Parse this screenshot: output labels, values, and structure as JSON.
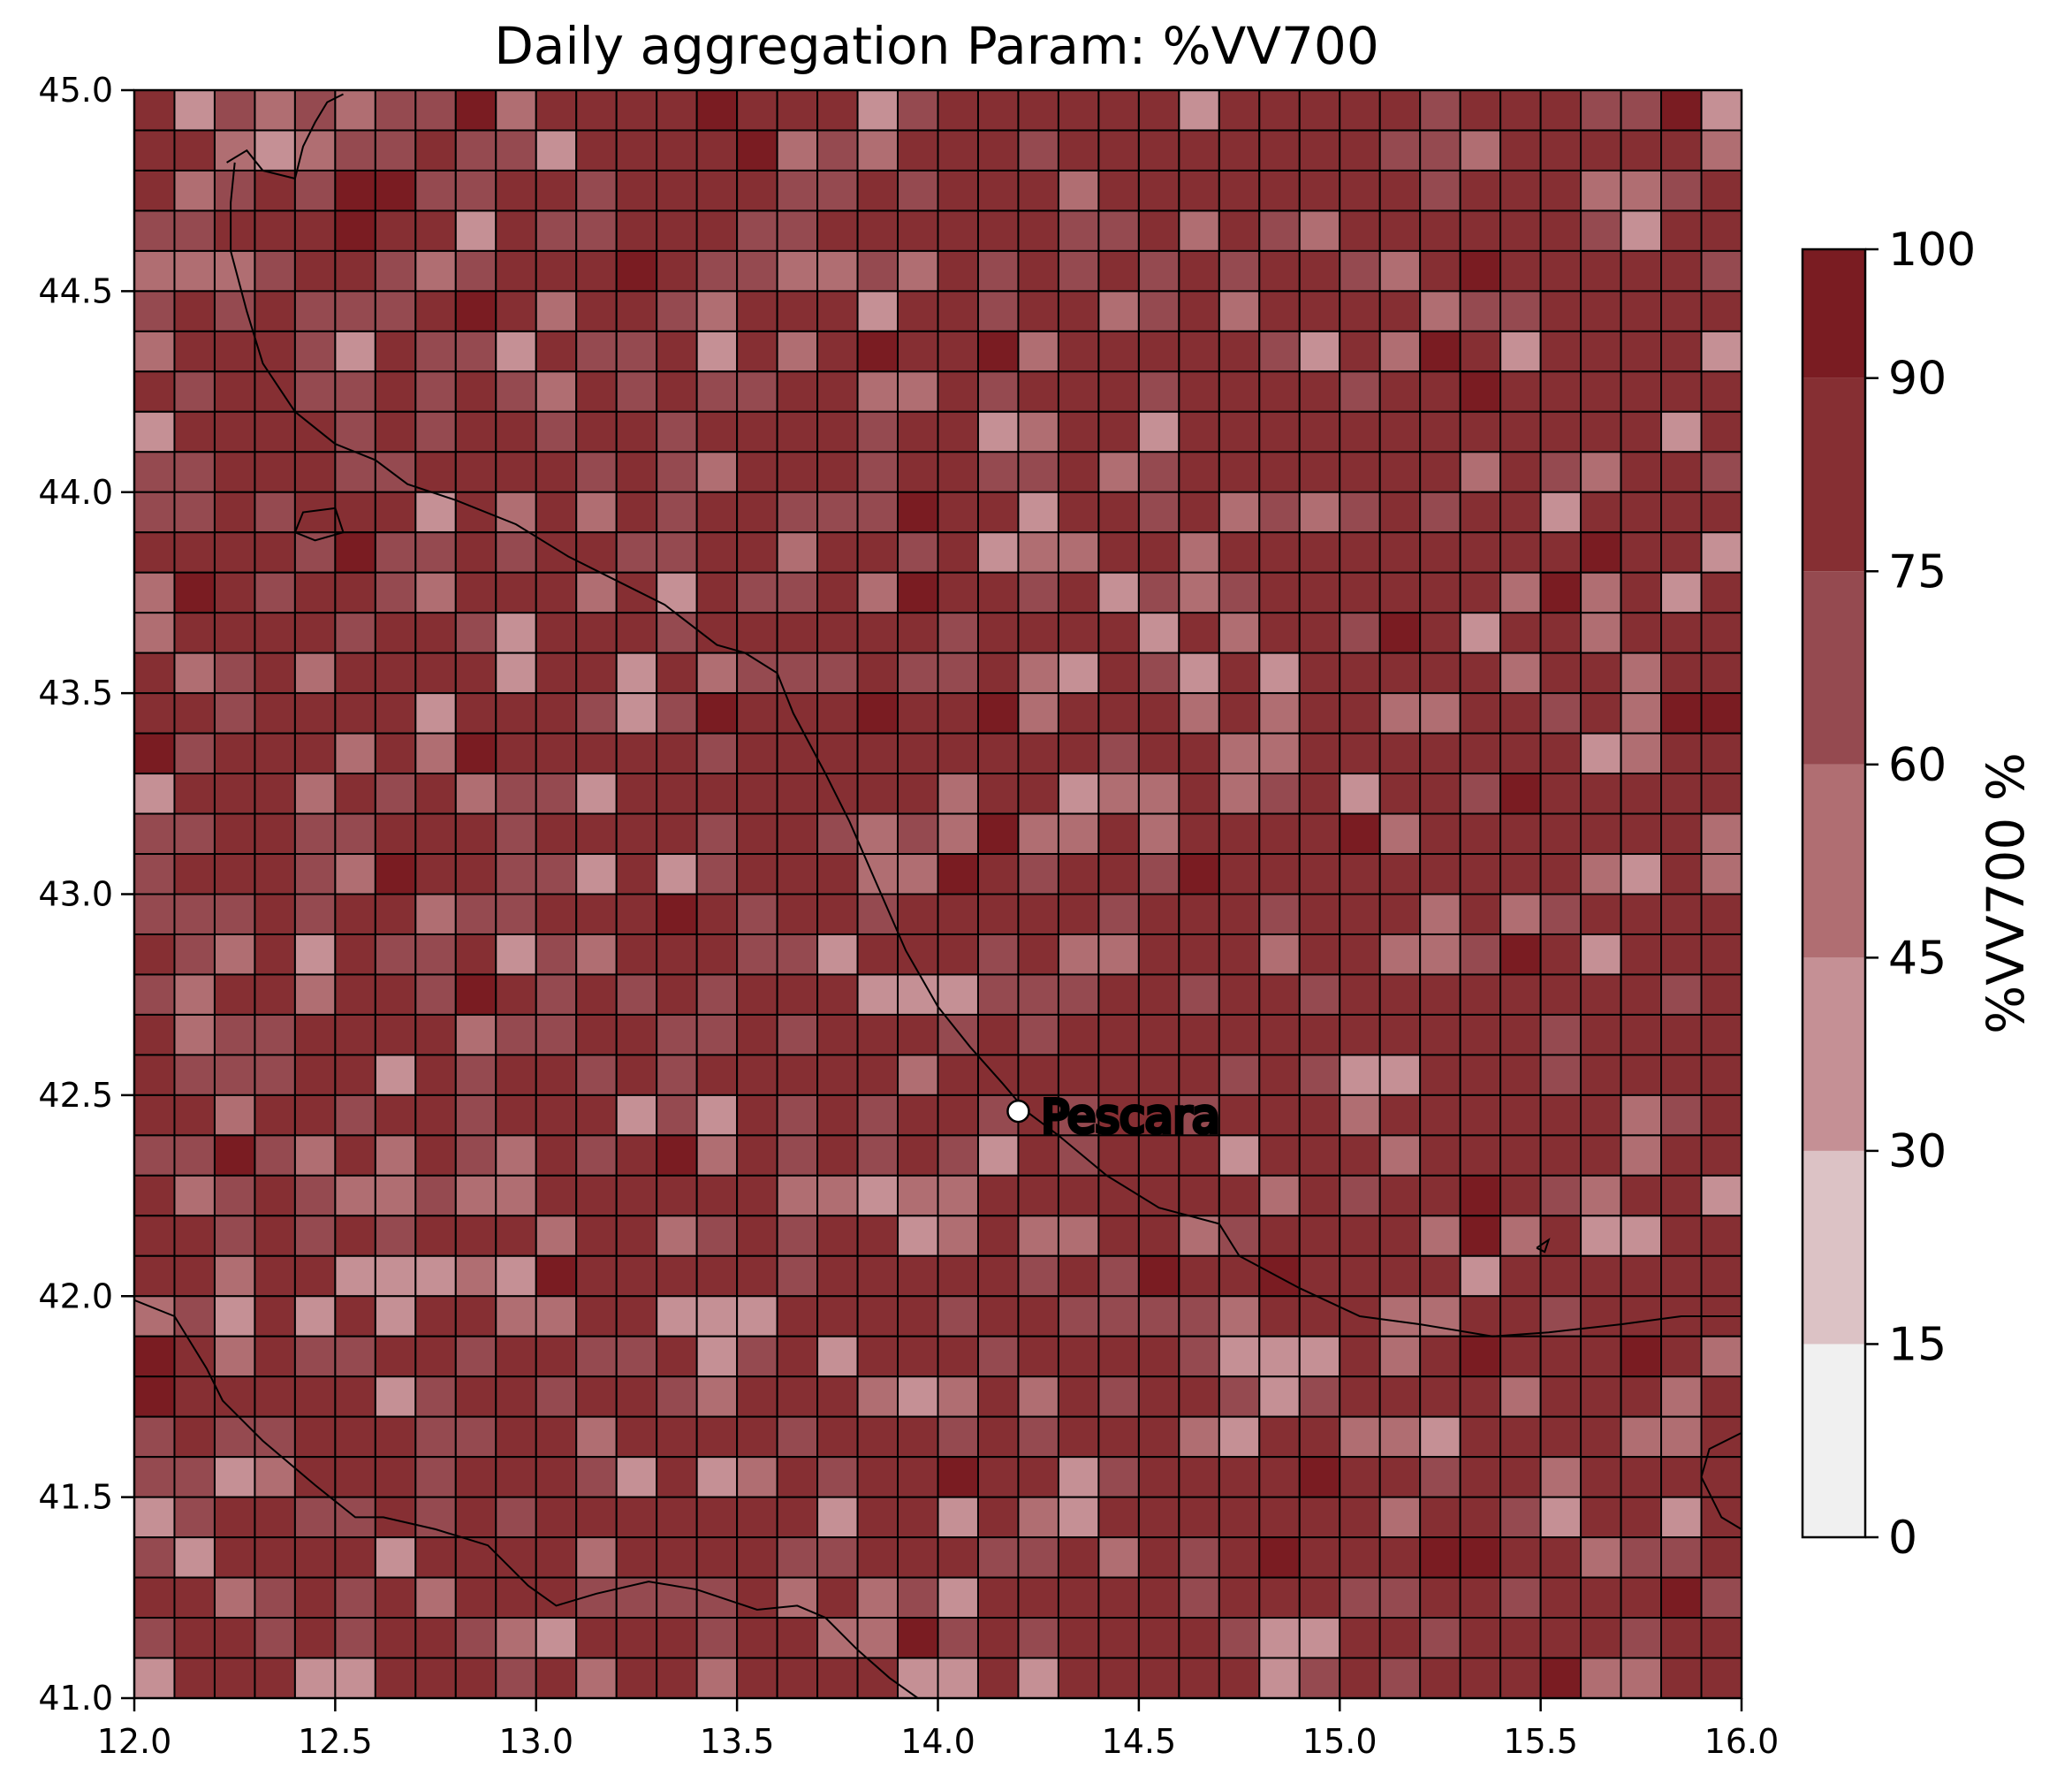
{
  "title": "Daily aggregation Param: %VV700",
  "place_label": "Pescara",
  "colorbar_label": "%VV700 %",
  "colors": {
    "grid_line": "#000000",
    "coast": "#000000",
    "marker_fill": "#ffffff"
  },
  "chart_data": {
    "type": "heatmap",
    "title": "Daily aggregation Param: %VV700",
    "xlim": [
      12.0,
      16.0
    ],
    "ylim": [
      41.0,
      45.0
    ],
    "x_ticks": [
      "12.0",
      "12.5",
      "13.0",
      "13.5",
      "14.0",
      "14.5",
      "15.0",
      "15.5",
      "16.0"
    ],
    "y_ticks": [
      "41.0",
      "41.5",
      "42.0",
      "42.5",
      "43.0",
      "43.5",
      "44.0",
      "44.5",
      "45.0"
    ],
    "grid": {
      "cols": 40,
      "rows": 40
    },
    "colorbar": {
      "label": "%VV700 %",
      "bounds": [
        0,
        15,
        30,
        45,
        60,
        75,
        90,
        100
      ],
      "tick_labels": [
        "0",
        "15",
        "30",
        "45",
        "60",
        "75",
        "90",
        "100"
      ],
      "colors": [
        "#f0f0f0",
        "#dcc2c5",
        "#c59095",
        "#b06e72",
        "#954a50",
        "#862f33",
        "#7a1c22",
        "#6a0000"
      ]
    },
    "point": {
      "name": "Pescara",
      "lon": 14.2,
      "lat": 42.46
    },
    "coastlines": [
      [
        [
          12.23,
          44.82
        ],
        [
          12.28,
          44.85
        ],
        [
          12.32,
          44.8
        ],
        [
          12.4,
          44.78
        ],
        [
          12.42,
          44.86
        ],
        [
          12.45,
          44.92
        ],
        [
          12.48,
          44.97
        ],
        [
          12.52,
          44.99
        ]
      ],
      [
        [
          12.25,
          44.82
        ],
        [
          12.24,
          44.72
        ],
        [
          12.24,
          44.6
        ],
        [
          12.28,
          44.45
        ],
        [
          12.32,
          44.32
        ],
        [
          12.4,
          44.2
        ],
        [
          12.5,
          44.12
        ],
        [
          12.6,
          44.08
        ],
        [
          12.68,
          44.02
        ],
        [
          12.8,
          43.98
        ],
        [
          12.95,
          43.92
        ],
        [
          13.08,
          43.84
        ],
        [
          13.2,
          43.78
        ],
        [
          13.32,
          43.72
        ],
        [
          13.45,
          43.62
        ],
        [
          13.52,
          43.6
        ],
        [
          13.6,
          43.55
        ],
        [
          13.64,
          43.45
        ],
        [
          13.72,
          43.3
        ],
        [
          13.78,
          43.18
        ],
        [
          13.85,
          43.02
        ],
        [
          13.92,
          42.86
        ],
        [
          14.0,
          42.72
        ],
        [
          14.08,
          42.62
        ],
        [
          14.16,
          42.53
        ],
        [
          14.22,
          42.46
        ],
        [
          14.3,
          42.4
        ],
        [
          14.42,
          42.3
        ],
        [
          14.55,
          42.22
        ],
        [
          14.7,
          42.18
        ],
        [
          14.75,
          42.1
        ],
        [
          14.9,
          42.02
        ],
        [
          15.05,
          41.95
        ],
        [
          15.2,
          41.93
        ],
        [
          15.38,
          41.9
        ],
        [
          15.52,
          41.91
        ],
        [
          15.7,
          41.93
        ],
        [
          15.85,
          41.95
        ],
        [
          16.0,
          41.95
        ]
      ],
      [
        [
          12.0,
          41.99
        ],
        [
          12.1,
          41.95
        ],
        [
          12.18,
          41.82
        ],
        [
          12.22,
          41.74
        ],
        [
          12.32,
          41.64
        ],
        [
          12.45,
          41.53
        ],
        [
          12.55,
          41.45
        ],
        [
          12.62,
          41.45
        ],
        [
          12.75,
          41.42
        ],
        [
          12.88,
          41.38
        ],
        [
          12.98,
          41.28
        ],
        [
          13.05,
          41.23
        ],
        [
          13.15,
          41.26
        ],
        [
          13.28,
          41.29
        ],
        [
          13.4,
          41.27
        ],
        [
          13.55,
          41.22
        ],
        [
          13.65,
          41.23
        ],
        [
          13.72,
          41.2
        ],
        [
          13.8,
          41.12
        ],
        [
          13.88,
          41.05
        ],
        [
          13.95,
          41.0
        ]
      ],
      [
        [
          16.0,
          41.66
        ],
        [
          15.92,
          41.62
        ],
        [
          15.9,
          41.55
        ],
        [
          15.95,
          41.45
        ],
        [
          16.0,
          41.42
        ]
      ],
      [
        [
          12.4,
          43.9
        ],
        [
          12.42,
          43.95
        ],
        [
          12.5,
          43.96
        ],
        [
          12.52,
          43.9
        ],
        [
          12.45,
          43.88
        ],
        [
          12.4,
          43.9
        ]
      ],
      [
        [
          15.49,
          42.12
        ],
        [
          15.52,
          42.14
        ],
        [
          15.51,
          42.11
        ],
        [
          15.49,
          42.12
        ]
      ]
    ]
  }
}
